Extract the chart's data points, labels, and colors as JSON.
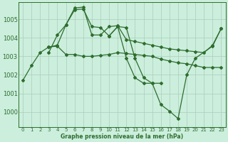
{
  "title": "Graphe pression niveau de la mer (hPa)",
  "bg_color": "#cceedd",
  "grid_color": "#aaccbb",
  "line_color": "#2d6e2d",
  "marker": "D",
  "markersize": 2.0,
  "linewidth": 0.9,
  "xlim": [
    -0.5,
    23.5
  ],
  "ylim": [
    999.2,
    1005.9
  ],
  "xticks": [
    0,
    1,
    2,
    3,
    4,
    5,
    6,
    7,
    8,
    9,
    10,
    11,
    12,
    13,
    14,
    15,
    16,
    17,
    18,
    19,
    20,
    21,
    22,
    23
  ],
  "yticks": [
    1000,
    1001,
    1002,
    1003,
    1004,
    1005
  ],
  "series": [
    {
      "x": [
        0,
        1,
        2,
        3,
        4,
        5,
        6,
        7,
        8,
        9,
        10,
        11,
        12,
        13,
        14,
        15,
        16,
        17,
        18,
        19,
        20,
        21,
        22,
        23
      ],
      "y": [
        1001.7,
        1002.5,
        1003.2,
        1003.5,
        1003.55,
        1003.1,
        1003.1,
        1003.0,
        1003.0,
        1003.05,
        1003.1,
        1003.2,
        1003.15,
        1003.1,
        1003.05,
        1003.0,
        1002.85,
        1002.75,
        1002.65,
        1002.6,
        1002.5,
        1002.4,
        1002.4,
        1002.4
      ]
    },
    {
      "x": [
        3,
        4,
        5,
        6,
        7,
        8,
        9,
        10,
        11,
        12,
        13,
        14,
        15,
        16,
        17,
        18,
        19,
        20,
        21,
        22,
        23
      ],
      "y": [
        1003.5,
        1003.6,
        1004.7,
        1005.6,
        1005.65,
        1004.15,
        1004.15,
        1004.6,
        1004.65,
        1003.9,
        1003.8,
        1003.7,
        1003.6,
        1003.5,
        1003.4,
        1003.35,
        1003.3,
        1003.25,
        1003.2,
        1003.6,
        1004.5
      ]
    },
    {
      "x": [
        3,
        4,
        5,
        6,
        7,
        8,
        9,
        10,
        11,
        12,
        13,
        14,
        15,
        16
      ],
      "y": [
        1003.2,
        1004.15,
        1004.7,
        1005.5,
        1005.55,
        1004.6,
        1004.55,
        1004.1,
        1004.6,
        1004.55,
        1002.9,
        1001.85,
        1001.55,
        1001.55
      ]
    },
    {
      "x": [
        10,
        11,
        12,
        13,
        14,
        15,
        16,
        17,
        18,
        19,
        20,
        22,
        23
      ],
      "y": [
        1004.1,
        1004.6,
        1002.9,
        1001.85,
        1001.55,
        1001.55,
        1000.4,
        1000.05,
        999.65,
        1002.0,
        1002.9,
        1003.55,
        1004.5
      ]
    }
  ]
}
